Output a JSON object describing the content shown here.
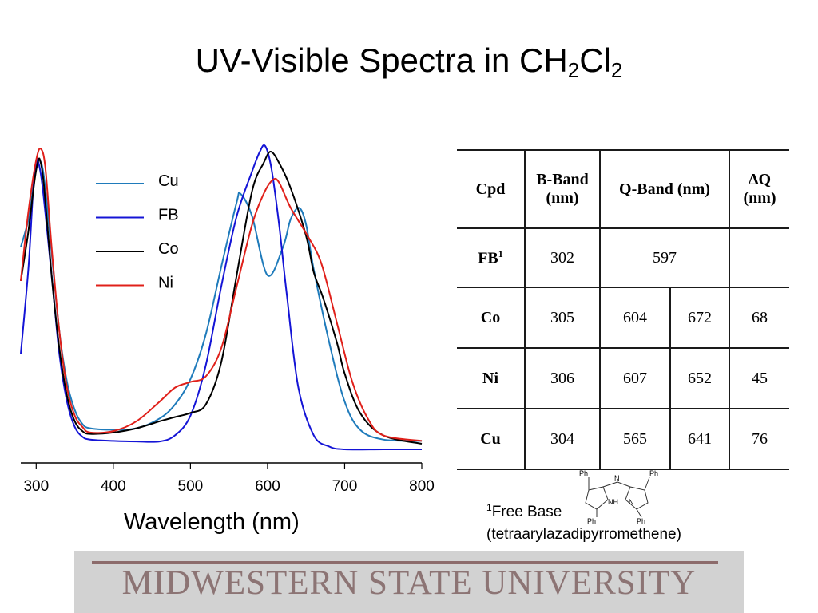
{
  "slide": {
    "title_main": "UV-Visible Spectra in CH",
    "title_sub1": "2",
    "title_mid": "Cl",
    "title_sub2": "2",
    "xaxis_label": "Wavelength (nm)",
    "footnote_sup": "1",
    "footnote_line1": "Free Base",
    "footnote_line2": "(tetraarylazadipyrromethene)",
    "banner": "MIDWESTERN STATE UNIVERSITY"
  },
  "chart_data": {
    "type": "line",
    "xlabel": "Wavelength (nm)",
    "ylabel": "",
    "xlim": [
      280,
      800
    ],
    "xticks": [
      300,
      400,
      500,
      600,
      700,
      800
    ],
    "y_axis_shown": false,
    "legend_position": "top-left",
    "series": [
      {
        "name": "Cu",
        "color": "#1f7bbb",
        "x": [
          280,
          290,
          296,
          300,
          304,
          310,
          320,
          330,
          340,
          350,
          360,
          370,
          400,
          430,
          460,
          480,
          500,
          520,
          540,
          560,
          565,
          580,
          600,
          620,
          630,
          641,
          650,
          660,
          680,
          700,
          720,
          750,
          800
        ],
        "y": [
          0.72,
          0.82,
          0.93,
          1.0,
          1.03,
          0.97,
          0.7,
          0.42,
          0.24,
          0.14,
          0.09,
          0.075,
          0.07,
          0.075,
          0.11,
          0.16,
          0.25,
          0.41,
          0.65,
          0.88,
          0.91,
          0.83,
          0.62,
          0.72,
          0.82,
          0.86,
          0.8,
          0.64,
          0.38,
          0.17,
          0.07,
          0.035,
          0.03
        ]
      },
      {
        "name": "FB",
        "color": "#1414d6",
        "x": [
          280,
          290,
          296,
          300,
          302,
          308,
          320,
          330,
          340,
          350,
          360,
          370,
          400,
          430,
          460,
          480,
          500,
          520,
          540,
          560,
          580,
          590,
          597,
          605,
          615,
          625,
          640,
          660,
          680,
          700,
          750,
          800
        ],
        "y": [
          0.34,
          0.65,
          0.92,
          1.01,
          1.03,
          0.94,
          0.62,
          0.34,
          0.17,
          0.08,
          0.045,
          0.035,
          0.03,
          0.028,
          0.028,
          0.05,
          0.12,
          0.3,
          0.58,
          0.83,
          0.99,
          1.06,
          1.08,
          1.0,
          0.8,
          0.55,
          0.22,
          0.05,
          0.01,
          0.0,
          0.0,
          0.0
        ]
      },
      {
        "name": "Co",
        "color": "#000000",
        "x": [
          280,
          290,
          298,
          302,
          305,
          310,
          320,
          330,
          340,
          350,
          360,
          370,
          400,
          430,
          460,
          480,
          500,
          520,
          540,
          560,
          580,
          595,
          604,
          615,
          630,
          650,
          660,
          672,
          690,
          700,
          720,
          750,
          800
        ],
        "y": [
          0.6,
          0.78,
          0.96,
          1.02,
          1.03,
          0.94,
          0.62,
          0.36,
          0.19,
          0.1,
          0.065,
          0.055,
          0.06,
          0.075,
          0.1,
          0.115,
          0.13,
          0.16,
          0.31,
          0.62,
          0.92,
          1.02,
          1.06,
          1.02,
          0.93,
          0.76,
          0.63,
          0.54,
          0.38,
          0.27,
          0.13,
          0.05,
          0.02
        ]
      },
      {
        "name": "Ni",
        "color": "#e0201a",
        "x": [
          280,
          290,
          300,
          306,
          312,
          320,
          330,
          340,
          350,
          360,
          370,
          400,
          430,
          460,
          480,
          500,
          520,
          540,
          560,
          580,
          595,
          607,
          615,
          630,
          652,
          670,
          690,
          710,
          730,
          750,
          800
        ],
        "y": [
          0.6,
          0.85,
          1.03,
          1.07,
          1.0,
          0.72,
          0.42,
          0.22,
          0.12,
          0.08,
          0.06,
          0.065,
          0.1,
          0.17,
          0.22,
          0.24,
          0.26,
          0.36,
          0.58,
          0.8,
          0.91,
          0.96,
          0.95,
          0.86,
          0.76,
          0.66,
          0.45,
          0.24,
          0.11,
          0.05,
          0.03
        ]
      }
    ]
  },
  "table": {
    "headers": [
      "Cpd",
      "B-Band (nm)",
      "Q-Band (nm)",
      "ΔQ (nm)"
    ],
    "rows": [
      {
        "cpd": "FB",
        "cpd_sup": "1",
        "b": "302",
        "q1": "597",
        "q2": "",
        "dq": ""
      },
      {
        "cpd": "Co",
        "cpd_sup": "",
        "b": "305",
        "q1": "604",
        "q2": "672",
        "dq": "68"
      },
      {
        "cpd": "Ni",
        "cpd_sup": "",
        "b": "306",
        "q1": "607",
        "q2": "652",
        "dq": "45"
      },
      {
        "cpd": "Cu",
        "cpd_sup": "",
        "b": "304",
        "q1": "565",
        "q2": "641",
        "dq": "76"
      }
    ]
  },
  "molecule": {
    "labels": [
      "Ph",
      "Ph",
      "Ph",
      "Ph",
      "N",
      "NH",
      "N"
    ]
  }
}
